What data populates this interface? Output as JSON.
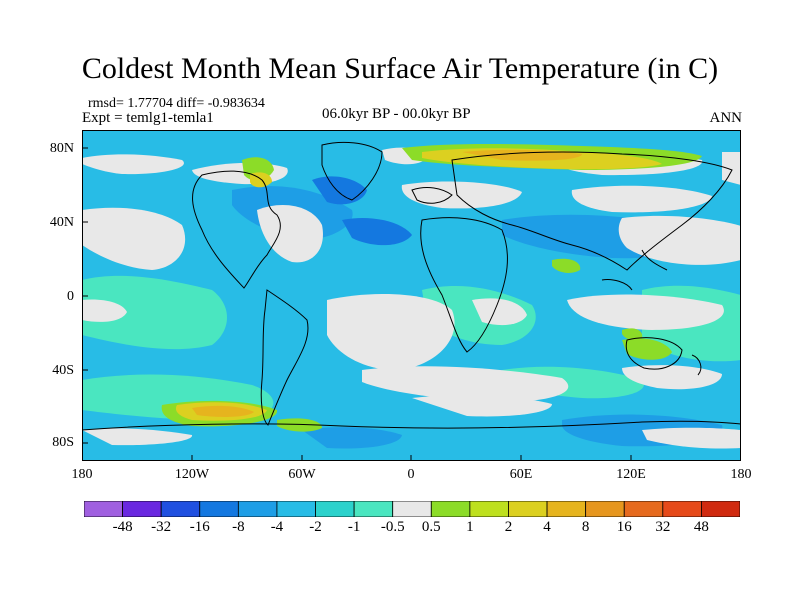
{
  "title": "Coldest Month Mean Surface Air Temperature (in C)",
  "stats": "rmsd= 1.77704 diff= -0.983634",
  "experiment": "Expt = temlg1-temla1",
  "period": "06.0kyr BP - 00.0kyr BP",
  "season": "ANN",
  "y_ticks": [
    "80N",
    "40N",
    "0",
    "40S",
    "80S"
  ],
  "x_ticks": [
    "180",
    "120W",
    "60W",
    "0",
    "60E",
    "120E",
    "180"
  ],
  "colorbar": {
    "labels": [
      "-48",
      "-32",
      "-16",
      "-8",
      "-4",
      "-2",
      "-1",
      "-0.5",
      "0.5",
      "1",
      "2",
      "4",
      "8",
      "16",
      "32",
      "48"
    ],
    "colors": [
      "#a060e0",
      "#6a28e0",
      "#2050e0",
      "#1478e0",
      "#1e9ee6",
      "#28bce6",
      "#2cd2cc",
      "#4ae6c0",
      "#e8e8e8",
      "#8cdc28",
      "#bee01e",
      "#dcd020",
      "#e6b41e",
      "#e6961e",
      "#e66a1e",
      "#e64a1a",
      "#d02a10"
    ]
  },
  "colors": {
    "ocean_base": "#28bce6",
    "neutral": "#e8e8e8",
    "light_cyan": "#4ae6c0",
    "blue": "#1e9ee6",
    "dark_blue": "#1478e0",
    "green": "#8cdc28",
    "yellow_green": "#bee01e",
    "yellow": "#dcd020",
    "orange": "#e6b41e"
  }
}
